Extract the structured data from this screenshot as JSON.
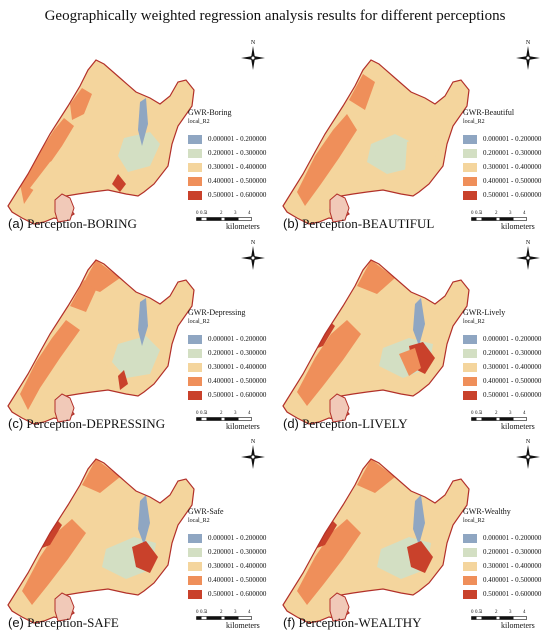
{
  "title": "Geographically weighted regression analysis results for different perceptions",
  "colors": {
    "class1": "#8fa6c2",
    "class2": "#d3dfc3",
    "class3": "#f4d59d",
    "class4": "#ef8f5a",
    "class5": "#c9412b",
    "boundary": "#b2302a"
  },
  "legend_ranges": [
    "0.000001 - 0.200000",
    "0.200001 - 0.300000",
    "0.300001 - 0.400000",
    "0.400001 - 0.500000",
    "0.500001 - 0.600000"
  ],
  "legend_subtitle": "local_R2",
  "scalebar": {
    "ticks": [
      "0",
      "0.5",
      "1",
      "2",
      "3",
      "4"
    ],
    "unit": "kilometers"
  },
  "north_label": "N",
  "panels": [
    {
      "letter": "(a)",
      "label": "Perception-BORING",
      "legend_title": "GWR-Boring"
    },
    {
      "letter": "(b)",
      "label": "Perception-BEAUTIFUL",
      "legend_title": "GWR-Beautiful"
    },
    {
      "letter": "(c)",
      "label": "Perception-DEPRESSING",
      "legend_title": "GWR-Depressing"
    },
    {
      "letter": "(d)",
      "label": "Perception-LIVELY",
      "legend_title": "GWR-Lively"
    },
    {
      "letter": "(e)",
      "label": "Perception-SAFE",
      "legend_title": "GWR-Safe"
    },
    {
      "letter": "(f)",
      "label": "Perception-WEALTHY",
      "legend_title": "GWR-Wealthy"
    }
  ]
}
